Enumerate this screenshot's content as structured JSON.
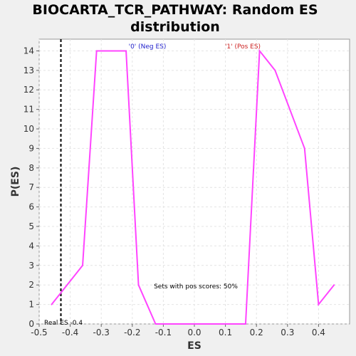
{
  "chart_data": {
    "type": "line",
    "title_line1": "BIOCARTA_TCR_PATHWAY: Random ES",
    "title_line2": "distribution",
    "xlabel": "ES",
    "ylabel": "P(ES)",
    "xlim": [
      -0.5,
      0.5
    ],
    "ylim": [
      0,
      14.6
    ],
    "xticks": [
      -0.5,
      -0.4,
      -0.3,
      -0.2,
      -0.1,
      0.0,
      0.1,
      0.2,
      0.3,
      0.4
    ],
    "xtick_labels": [
      "-0.5",
      "-0.4",
      "-0.3",
      "-0.2",
      "-0.1",
      "0.0",
      "0.1",
      "0.2",
      "0.3",
      "0.4"
    ],
    "yticks": [
      0,
      1,
      2,
      3,
      4,
      5,
      6,
      7,
      8,
      9,
      10,
      11,
      12,
      13,
      14
    ],
    "grid": true,
    "series": [
      {
        "color": "#ff44ff",
        "x": [
          -0.46,
          -0.36,
          -0.315,
          -0.265,
          -0.22,
          -0.18,
          -0.125,
          0.165,
          0.21,
          0.26,
          0.355,
          0.4,
          0.45
        ],
        "y": [
          1,
          3,
          14,
          14,
          14,
          2,
          0,
          0,
          14,
          13,
          9,
          1,
          2
        ]
      }
    ],
    "reference_line": {
      "x": -0.43,
      "label": "Real ES -0.4"
    },
    "annotations": {
      "neg": {
        "text": "'0' (Neg ES)",
        "color": "#2222cc"
      },
      "pos": {
        "text": "'1' (Pos ES)",
        "color": "#cc2222"
      },
      "pos_scores": "Sets with pos scores: 50%"
    }
  }
}
